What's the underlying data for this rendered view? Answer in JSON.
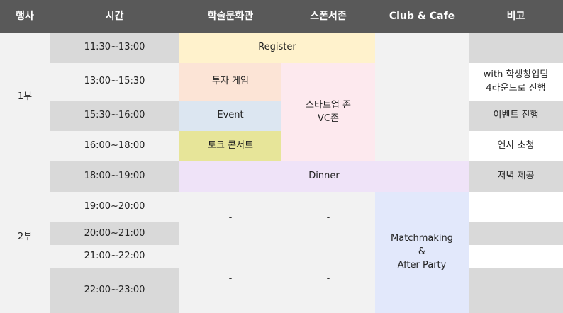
{
  "headers": [
    "행사",
    "시간",
    "학술문화관",
    "스폰서존",
    "Club & Cafe",
    "비고"
  ],
  "sessions": {
    "part1": "1부",
    "part2": "2부"
  },
  "times": [
    "11:30~13:00",
    "13:00~15:30",
    "15:30~16:00",
    "16:00~18:00",
    "18:00~19:00",
    "19:00~20:00",
    "20:00~21:00",
    "21:00~22:00",
    "22:00~23:00"
  ],
  "events": {
    "register": "Register",
    "investment_game": "투자 게임",
    "startup_zone": "스타트업 존\nVC존",
    "event": "Event",
    "talk_concert": "토크 콘서트",
    "dinner": "Dinner",
    "matchmaking": "Matchmaking\n&\nAfter Party",
    "dash_a": "-",
    "dash_b": "-",
    "dash_c": "-",
    "dash_d": "-"
  },
  "remarks": {
    "startup_round": "with 학생창업팀\n4라운드로 진행",
    "event_progress": "이벤트 진행",
    "speaker_invite": "연사 초청",
    "dinner_provided": "저녁 제공"
  }
}
